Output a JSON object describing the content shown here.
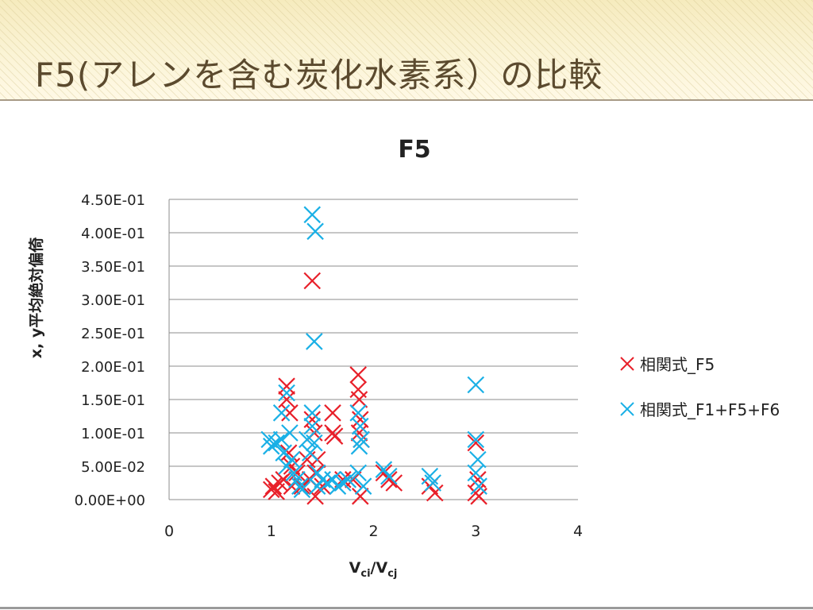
{
  "slide": {
    "title": "F5(アレンを含む炭化水素系）の比較"
  },
  "chart_data": {
    "type": "scatter",
    "title": "F5",
    "xlabel_main": "V",
    "xlabel_sub1": "ci",
    "xlabel_sep": "/V",
    "xlabel_sub2": "cj",
    "ylabel": "x, y平均絶対偏倚",
    "xlim": [
      0,
      4
    ],
    "ylim": [
      0,
      0.45
    ],
    "x_ticks": [
      "0",
      "1",
      "2",
      "3",
      "4"
    ],
    "y_ticks": [
      "0.00E+00",
      "5.00E-02",
      "1.00E-01",
      "1.50E-01",
      "2.00E-01",
      "2.50E-01",
      "3.00E-01",
      "3.50E-01",
      "4.00E-01",
      "4.50E-01"
    ],
    "grid": "horizontal",
    "legend_position": "right",
    "marker": "x",
    "series": [
      {
        "name": "相関式_F5",
        "color": "#e8202a",
        "points": [
          [
            1.0,
            0.015
          ],
          [
            1.02,
            0.02
          ],
          [
            1.05,
            0.012
          ],
          [
            1.08,
            0.025
          ],
          [
            1.12,
            0.03
          ],
          [
            1.15,
            0.17
          ],
          [
            1.15,
            0.15
          ],
          [
            1.18,
            0.13
          ],
          [
            1.17,
            0.07
          ],
          [
            1.2,
            0.05
          ],
          [
            1.2,
            0.02
          ],
          [
            1.25,
            0.04
          ],
          [
            1.3,
            0.02
          ],
          [
            1.35,
            0.06
          ],
          [
            1.38,
            0.03
          ],
          [
            1.4,
            0.328
          ],
          [
            1.4,
            0.12
          ],
          [
            1.42,
            0.1
          ],
          [
            1.43,
            0.04
          ],
          [
            1.43,
            0.005
          ],
          [
            1.45,
            0.06
          ],
          [
            1.5,
            0.02
          ],
          [
            1.6,
            0.13
          ],
          [
            1.6,
            0.1
          ],
          [
            1.62,
            0.095
          ],
          [
            1.7,
            0.03
          ],
          [
            1.8,
            0.03
          ],
          [
            1.85,
            0.187
          ],
          [
            1.85,
            0.165
          ],
          [
            1.86,
            0.15
          ],
          [
            1.87,
            0.12
          ],
          [
            1.86,
            0.1
          ],
          [
            1.88,
            0.09
          ],
          [
            1.87,
            0.005
          ],
          [
            2.1,
            0.04
          ],
          [
            2.15,
            0.03
          ],
          [
            2.2,
            0.025
          ],
          [
            2.55,
            0.02
          ],
          [
            2.6,
            0.01
          ],
          [
            3.0,
            0.085
          ],
          [
            3.02,
            0.03
          ],
          [
            3.0,
            0.01
          ],
          [
            3.03,
            0.005
          ]
        ]
      },
      {
        "name": "相関式_F1+F5+F6",
        "color": "#1ab0e6",
        "points": [
          [
            0.98,
            0.09
          ],
          [
            1.0,
            0.08
          ],
          [
            1.05,
            0.085
          ],
          [
            1.1,
            0.13
          ],
          [
            1.1,
            0.09
          ],
          [
            1.12,
            0.07
          ],
          [
            1.15,
            0.16
          ],
          [
            1.15,
            0.05
          ],
          [
            1.18,
            0.1
          ],
          [
            1.2,
            0.06
          ],
          [
            1.22,
            0.04
          ],
          [
            1.25,
            0.03
          ],
          [
            1.28,
            0.02
          ],
          [
            1.3,
            0.015
          ],
          [
            1.35,
            0.09
          ],
          [
            1.38,
            0.07
          ],
          [
            1.4,
            0.427
          ],
          [
            1.43,
            0.402
          ],
          [
            1.42,
            0.237
          ],
          [
            1.4,
            0.13
          ],
          [
            1.4,
            0.11
          ],
          [
            1.42,
            0.085
          ],
          [
            1.45,
            0.04
          ],
          [
            1.45,
            0.02
          ],
          [
            1.5,
            0.03
          ],
          [
            1.55,
            0.025
          ],
          [
            1.6,
            0.03
          ],
          [
            1.65,
            0.02
          ],
          [
            1.7,
            0.025
          ],
          [
            1.75,
            0.03
          ],
          [
            1.85,
            0.13
          ],
          [
            1.87,
            0.11
          ],
          [
            1.88,
            0.09
          ],
          [
            1.86,
            0.08
          ],
          [
            1.85,
            0.04
          ],
          [
            1.9,
            0.02
          ],
          [
            2.1,
            0.045
          ],
          [
            2.15,
            0.035
          ],
          [
            2.55,
            0.035
          ],
          [
            2.58,
            0.025
          ],
          [
            3.0,
            0.172
          ],
          [
            3.0,
            0.09
          ],
          [
            3.02,
            0.06
          ],
          [
            3.0,
            0.04
          ],
          [
            3.03,
            0.02
          ]
        ]
      }
    ]
  }
}
